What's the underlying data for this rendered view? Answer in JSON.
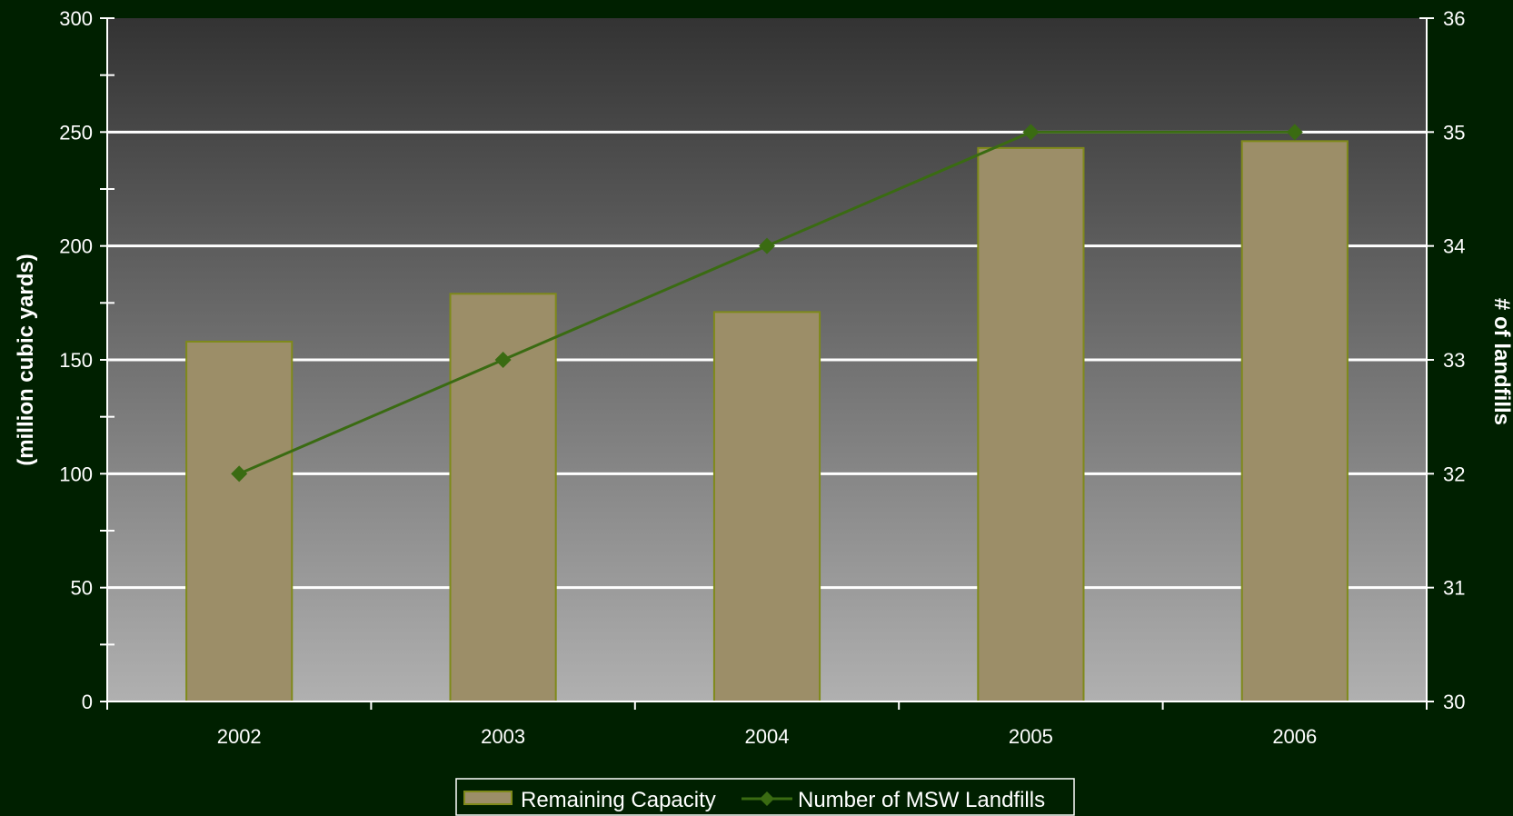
{
  "chart_data": {
    "type": "bar",
    "categories": [
      "2002",
      "2003",
      "2004",
      "2005",
      "2006"
    ],
    "series": [
      {
        "name": "Remaining Capacity",
        "type": "bar",
        "axis": "left",
        "values": [
          158,
          179,
          171,
          243,
          246
        ],
        "color": "#9c8e68",
        "edge_color": "#7f8a1a"
      },
      {
        "name": "Number of MSW Landfills",
        "type": "line",
        "axis": "right",
        "marker": "diamond",
        "values": [
          32,
          33,
          34,
          35,
          35
        ],
        "color": "#3a6b12"
      }
    ],
    "ylabel": "(million cubic yards)",
    "y2label": "# of landfills",
    "ylim": [
      0,
      300
    ],
    "y2lim": [
      30,
      36
    ],
    "yticks": [
      "0",
      "50",
      "100",
      "150",
      "200",
      "250",
      "300"
    ],
    "y2ticks": [
      "30",
      "31",
      "32",
      "33",
      "34",
      "35",
      "36"
    ],
    "grid": true,
    "legend_position": "bottom-center",
    "colors": {
      "page_background": "#002000",
      "plot_gradient_top": "#333333",
      "plot_gradient_bottom": "#b0b0b0",
      "gridline": "#ffffff",
      "axis": "#ffffff",
      "text": "#ffffff"
    }
  }
}
